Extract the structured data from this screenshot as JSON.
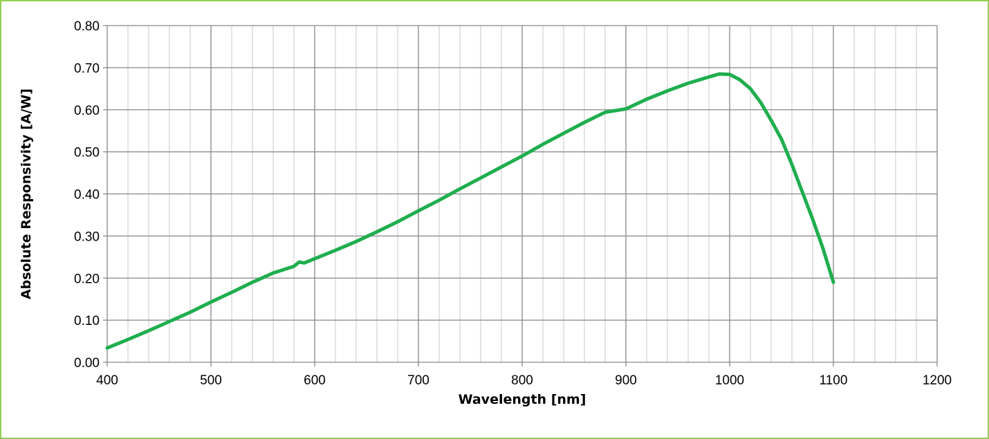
{
  "chart_data": {
    "type": "line",
    "title": "",
    "xlabel": "Wavelength [nm]",
    "ylabel": "Absolute Responsivity [A/W]",
    "xlim": [
      400,
      1200
    ],
    "ylim": [
      0,
      0.8
    ],
    "x_major_ticks": [
      400,
      500,
      600,
      700,
      800,
      900,
      1000,
      1100,
      1200
    ],
    "x_tick_labels": [
      "400",
      "500",
      "600",
      "700",
      "800",
      "900",
      "1000",
      "1100",
      "1200"
    ],
    "x_minor_step": 20,
    "y_major_ticks": [
      0,
      0.1,
      0.2,
      0.3,
      0.4,
      0.5,
      0.6,
      0.7,
      0.8
    ],
    "y_tick_labels": [
      "0.00",
      "0.10",
      "0.20",
      "0.30",
      "0.40",
      "0.50",
      "0.60",
      "0.70",
      "0.80"
    ],
    "grid": true,
    "legend": "none",
    "line_color": "#1fae4e",
    "frame_color": "#92d050",
    "series": [
      {
        "x": [
          400,
          420,
          440,
          460,
          480,
          500,
          520,
          540,
          560,
          580,
          585,
          590,
          600,
          620,
          640,
          660,
          680,
          700,
          720,
          740,
          760,
          780,
          800,
          820,
          840,
          860,
          880,
          900,
          920,
          940,
          960,
          980,
          990,
          1000,
          1010,
          1020,
          1030,
          1040,
          1050,
          1060,
          1070,
          1080,
          1090,
          1100
        ],
        "y": [
          0.034,
          0.054,
          0.075,
          0.097,
          0.119,
          0.143,
          0.166,
          0.19,
          0.212,
          0.228,
          0.238,
          0.236,
          0.246,
          0.266,
          0.287,
          0.31,
          0.334,
          0.36,
          0.385,
          0.412,
          0.438,
          0.464,
          0.49,
          0.518,
          0.544,
          0.57,
          0.594,
          0.602,
          0.625,
          0.645,
          0.663,
          0.678,
          0.685,
          0.684,
          0.671,
          0.65,
          0.617,
          0.575,
          0.53,
          0.47,
          0.405,
          0.34,
          0.27,
          0.19
        ]
      }
    ]
  }
}
